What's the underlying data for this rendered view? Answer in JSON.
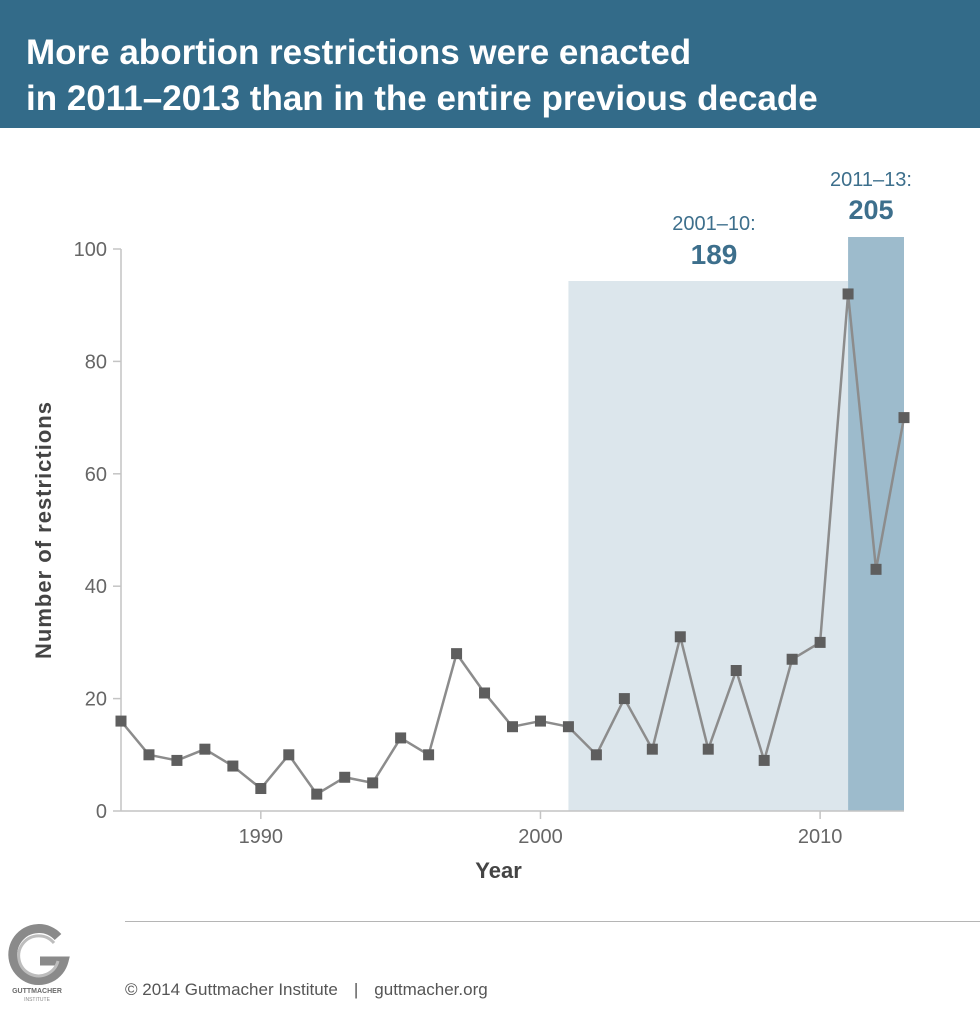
{
  "header": {
    "title_line1": "More abortion restrictions were enacted",
    "title_line2": "in 2011–2013 than in the entire previous decade"
  },
  "chart_data": {
    "type": "line",
    "title": "More abortion restrictions were enacted in 2011–2013 than in the entire previous decade",
    "xlabel": "Year",
    "ylabel": "Number of restrictions",
    "xlim": [
      1985,
      2013
    ],
    "ylim": [
      0,
      100
    ],
    "x_ticks": [
      1990,
      2000,
      2010
    ],
    "y_ticks": [
      0,
      20,
      40,
      60,
      80,
      100
    ],
    "grid": false,
    "series": [
      {
        "x": [
          1985,
          1986,
          1987,
          1988,
          1989,
          1990,
          1991,
          1992,
          1993,
          1994,
          1995,
          1996,
          1997,
          1998,
          1999,
          2000,
          2001,
          2002,
          2003,
          2004,
          2005,
          2006,
          2007,
          2008,
          2009,
          2010,
          2011,
          2012,
          2013
        ],
        "values": [
          16,
          10,
          9,
          11,
          8,
          4,
          10,
          3,
          6,
          5,
          13,
          10,
          28,
          21,
          15,
          16,
          15,
          10,
          20,
          11,
          31,
          11,
          25,
          9,
          27,
          30,
          92,
          43,
          70
        ]
      }
    ],
    "highlights": [
      {
        "label": "2001–10:",
        "total": "189",
        "start": 2001,
        "end": 2011,
        "color": "#dce6ec"
      },
      {
        "label": "2011–13:",
        "total": "205",
        "start": 2011,
        "end": 2013,
        "color": "#9dbbcc"
      }
    ],
    "colors": {
      "line": "#8c8c8c",
      "marker": "#5e5e5e",
      "axis": "#c4c4c4",
      "tick_text": "#666666",
      "label_text": "#444444",
      "highlight_text": "#3d6f8c"
    }
  },
  "footer": {
    "copyright": "© 2014 Guttmacher Institute",
    "separator": "|",
    "website": "guttmacher.org",
    "logo_text": "GUTTMACHER",
    "logo_subtext": "INSTITUTE",
    "logo_icon": "guttmacher-g-logo"
  }
}
